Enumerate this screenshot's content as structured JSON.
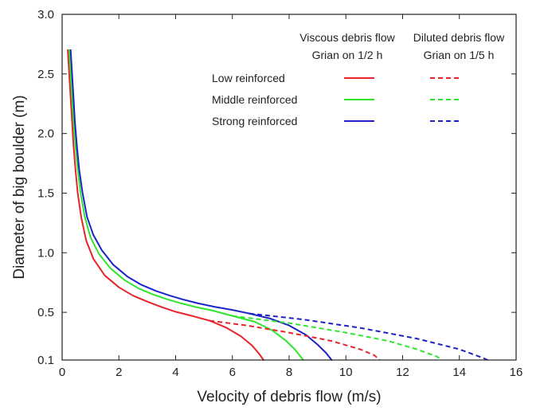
{
  "chart_data": {
    "type": "line",
    "title": "",
    "xlabel": "Velocity of debris flow (m/s)",
    "ylabel": "Diameter of big boulder (m)",
    "xlim": [
      0,
      16
    ],
    "ylim": [
      0.1,
      3.0
    ],
    "xticks": [
      "0",
      "2",
      "4",
      "6",
      "8",
      "10",
      "12",
      "14",
      "16"
    ],
    "yticks": [
      "0.1",
      "0.5",
      "1.0",
      "1.5",
      "2.0",
      "2.5",
      "3.0"
    ],
    "xtick_values": [
      0,
      2,
      4,
      6,
      8,
      10,
      12,
      14,
      16
    ],
    "ytick_values": [
      0.1,
      0.5,
      1.0,
      1.5,
      2.0,
      2.5,
      3.0
    ],
    "grid": false,
    "legend": {
      "placement": "top-right",
      "column_headers": [
        [
          "Viscous debris flow",
          "Grian on 1/2 h"
        ],
        [
          "Diluted debris flow",
          "Grian on 1/5 h"
        ]
      ],
      "row_labels": [
        "Low reinforced",
        "Middle reinforced",
        "Strong reinforced"
      ]
    },
    "colors": {
      "low": "#e8232a",
      "middle": "#2fe52f",
      "strong": "#1e23c8"
    },
    "series": [
      {
        "name": "Low reinforced",
        "color_key": "low",
        "style": "solid",
        "flow": "viscous",
        "points": [
          [
            0.2,
            2.7
          ],
          [
            0.25,
            2.5
          ],
          [
            0.3,
            2.3
          ],
          [
            0.35,
            2.1
          ],
          [
            0.4,
            1.9
          ],
          [
            0.47,
            1.7
          ],
          [
            0.55,
            1.5
          ],
          [
            0.67,
            1.3
          ],
          [
            0.85,
            1.1
          ],
          [
            1.1,
            0.95
          ],
          [
            1.5,
            0.81
          ],
          [
            2.0,
            0.71
          ],
          [
            2.5,
            0.64
          ],
          [
            3.0,
            0.59
          ],
          [
            3.5,
            0.545
          ],
          [
            4.0,
            0.505
          ],
          [
            4.5,
            0.475
          ],
          [
            5.2,
            0.43
          ],
          [
            5.8,
            0.37
          ],
          [
            6.3,
            0.3
          ],
          [
            6.7,
            0.22
          ],
          [
            6.95,
            0.15
          ],
          [
            7.1,
            0.1
          ]
        ]
      },
      {
        "name": "Middle reinforced",
        "color_key": "middle",
        "style": "solid",
        "flow": "viscous",
        "points": [
          [
            0.25,
            2.7
          ],
          [
            0.3,
            2.5
          ],
          [
            0.35,
            2.3
          ],
          [
            0.4,
            2.1
          ],
          [
            0.47,
            1.9
          ],
          [
            0.55,
            1.7
          ],
          [
            0.65,
            1.5
          ],
          [
            0.8,
            1.3
          ],
          [
            1.0,
            1.13
          ],
          [
            1.3,
            0.99
          ],
          [
            1.7,
            0.87
          ],
          [
            2.2,
            0.77
          ],
          [
            2.7,
            0.7
          ],
          [
            3.2,
            0.65
          ],
          [
            3.7,
            0.61
          ],
          [
            4.2,
            0.575
          ],
          [
            4.7,
            0.545
          ],
          [
            5.3,
            0.515
          ],
          [
            6.0,
            0.47
          ],
          [
            6.8,
            0.42
          ],
          [
            7.4,
            0.35
          ],
          [
            7.9,
            0.26
          ],
          [
            8.2,
            0.19
          ],
          [
            8.4,
            0.13
          ],
          [
            8.5,
            0.1
          ]
        ]
      },
      {
        "name": "Strong reinforced",
        "color_key": "strong",
        "style": "solid",
        "flow": "viscous",
        "points": [
          [
            0.3,
            2.7
          ],
          [
            0.35,
            2.5
          ],
          [
            0.4,
            2.3
          ],
          [
            0.45,
            2.1
          ],
          [
            0.52,
            1.9
          ],
          [
            0.6,
            1.7
          ],
          [
            0.72,
            1.5
          ],
          [
            0.88,
            1.3
          ],
          [
            1.1,
            1.15
          ],
          [
            1.4,
            1.02
          ],
          [
            1.8,
            0.9
          ],
          [
            2.3,
            0.8
          ],
          [
            2.8,
            0.73
          ],
          [
            3.3,
            0.68
          ],
          [
            3.8,
            0.64
          ],
          [
            4.3,
            0.605
          ],
          [
            4.8,
            0.575
          ],
          [
            5.4,
            0.545
          ],
          [
            6.0,
            0.52
          ],
          [
            6.6,
            0.49
          ],
          [
            7.3,
            0.45
          ],
          [
            8.0,
            0.39
          ],
          [
            8.6,
            0.31
          ],
          [
            9.0,
            0.23
          ],
          [
            9.3,
            0.16
          ],
          [
            9.5,
            0.1
          ]
        ]
      },
      {
        "name": "Low reinforced",
        "color_key": "low",
        "style": "dashed",
        "flow": "diluted",
        "points": [
          [
            5.2,
            0.43
          ],
          [
            6.5,
            0.39
          ],
          [
            8.0,
            0.33
          ],
          [
            9.5,
            0.26
          ],
          [
            10.5,
            0.19
          ],
          [
            11.0,
            0.14
          ],
          [
            11.2,
            0.1
          ]
        ]
      },
      {
        "name": "Middle reinforced",
        "color_key": "middle",
        "style": "dashed",
        "flow": "diluted",
        "points": [
          [
            6.0,
            0.47
          ],
          [
            8.0,
            0.41
          ],
          [
            10.0,
            0.33
          ],
          [
            11.5,
            0.26
          ],
          [
            12.5,
            0.19
          ],
          [
            13.2,
            0.13
          ],
          [
            13.4,
            0.1
          ]
        ]
      },
      {
        "name": "Strong reinforced",
        "color_key": "strong",
        "style": "dashed",
        "flow": "diluted",
        "points": [
          [
            6.6,
            0.49
          ],
          [
            8.5,
            0.44
          ],
          [
            10.5,
            0.37
          ],
          [
            12.5,
            0.28
          ],
          [
            14.0,
            0.19
          ],
          [
            14.8,
            0.12
          ],
          [
            15.0,
            0.1
          ]
        ]
      }
    ]
  }
}
